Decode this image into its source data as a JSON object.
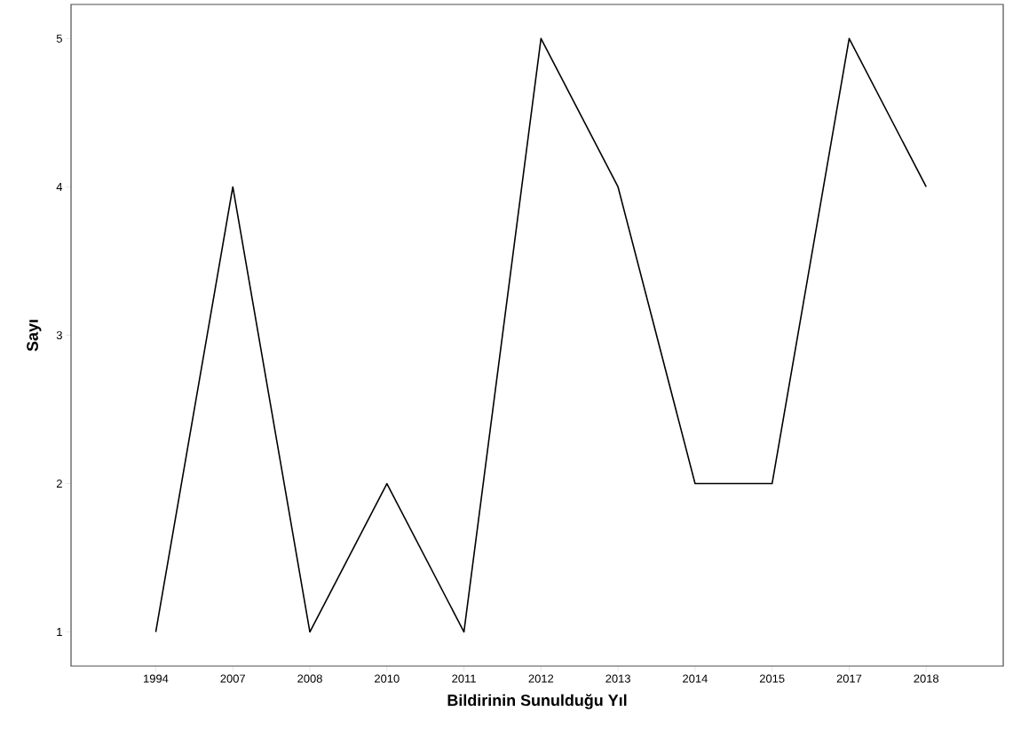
{
  "chart_data": {
    "type": "line",
    "xlabel": "Bildirinin Sunulduğu Yıl",
    "ylabel": "Sayı",
    "categories": [
      "1994",
      "2007",
      "2008",
      "2010",
      "2011",
      "2012",
      "2013",
      "2014",
      "2015",
      "2017",
      "2018"
    ],
    "values": [
      1,
      4,
      1,
      2,
      1,
      5,
      4,
      2,
      2,
      5,
      4
    ],
    "color": "#000000",
    "ylim": [
      0.77,
      5.23
    ],
    "yticks": [
      1,
      2,
      3,
      4,
      5
    ],
    "grid": false,
    "marker": "none",
    "line_style": "solid"
  }
}
